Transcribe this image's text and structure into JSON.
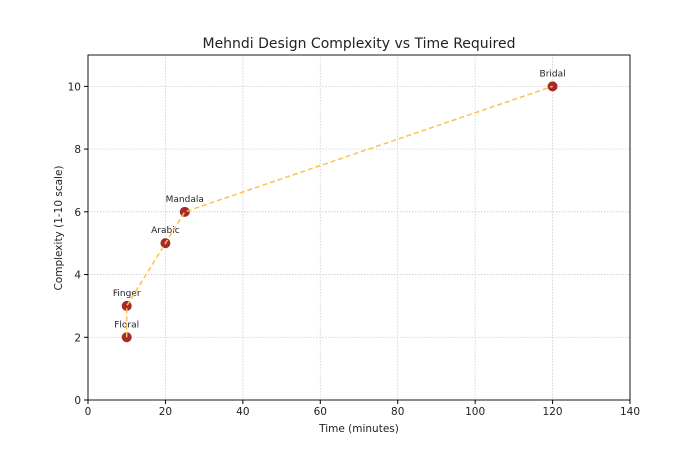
{
  "chart_data": {
    "type": "scatter",
    "title": "Mehndi Design Complexity vs Time Required",
    "xlabel": "Time (minutes)",
    "ylabel": "Complexity (1-10 scale)",
    "xlim": [
      0,
      140
    ],
    "ylim": [
      0,
      11
    ],
    "xticks": [
      0,
      20,
      40,
      60,
      80,
      100,
      120,
      140
    ],
    "yticks": [
      0,
      2,
      4,
      6,
      8,
      10
    ],
    "grid": true,
    "connecting_line": "dashed",
    "points": [
      {
        "label": "Floral",
        "x": 10,
        "y": 2
      },
      {
        "label": "Finger",
        "x": 10,
        "y": 3
      },
      {
        "label": "Arabic",
        "x": 20,
        "y": 5
      },
      {
        "label": "Mandala",
        "x": 25,
        "y": 6
      },
      {
        "label": "Bridal",
        "x": 120,
        "y": 10
      }
    ],
    "colors": {
      "marker": "#a52a2a",
      "line": "#ffc04d"
    }
  }
}
